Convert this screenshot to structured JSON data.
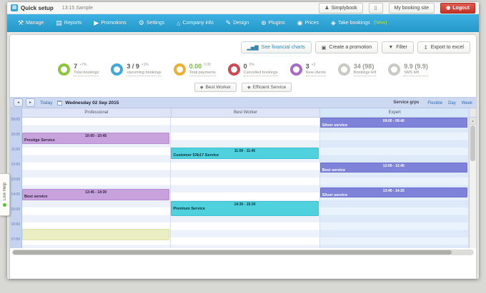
{
  "titlebar": {
    "app_title": "Quick setup",
    "sample_label": "13:15 Sample",
    "account_button": "Simplybook",
    "booking_site_button": "My booking site",
    "logout_button": "Logout"
  },
  "nav": {
    "items": [
      {
        "label": "Manage",
        "icon": "wrench-icon",
        "glyph": "⚒"
      },
      {
        "label": "Reports",
        "icon": "reports-icon",
        "glyph": "▤"
      },
      {
        "label": "Promotions",
        "icon": "arrow-icon",
        "glyph": "▶"
      },
      {
        "label": "Settings",
        "icon": "gear-icon",
        "glyph": "⚙"
      },
      {
        "label": "Company info",
        "icon": "building-icon",
        "glyph": "⌂"
      },
      {
        "label": "Design",
        "icon": "pencil-icon",
        "glyph": "✎"
      },
      {
        "label": "Plugins",
        "icon": "plugin-icon",
        "glyph": "⊕"
      },
      {
        "label": "Prices",
        "icon": "coin-icon",
        "glyph": "◉"
      },
      {
        "label": "Take bookings",
        "icon": "booking-icon",
        "glyph": "◈",
        "badge": "(New)"
      }
    ]
  },
  "toolbar": {
    "buttons": [
      {
        "label": "See financial charts",
        "icon": "chart-icon",
        "glyph": "▂▅▇",
        "accent": true
      },
      {
        "label": "Create a promotion",
        "icon": "promotion-icon",
        "glyph": "▣"
      },
      {
        "label": "Filter",
        "icon": "filter-icon",
        "glyph": "▼"
      },
      {
        "label": "Export to excel",
        "icon": "export-icon",
        "glyph": "↧"
      }
    ]
  },
  "stats": [
    {
      "value": "7",
      "delta": "+7%",
      "label": "Total bookings",
      "color": "#8cc63e"
    },
    {
      "value": "3 / 9",
      "delta": "+1%",
      "label": "Upcoming bookings",
      "color": "#41a8dc"
    },
    {
      "value": "0.00",
      "delta": "0.00",
      "label": "Total payments",
      "color": "#efaf36",
      "value_color": "#7ab648"
    },
    {
      "value": "0",
      "delta": "0%",
      "label": "Cancelled bookings",
      "color": "#cc4b52"
    },
    {
      "value": "3",
      "delta": "+3",
      "label": "New clients",
      "color": "#a86bc9"
    },
    {
      "value": "34 (98)",
      "delta": "",
      "label": "Bookings left",
      "color": "#c9c9c6",
      "muted": true
    },
    {
      "value": "9.9 (9.9)",
      "delta": "",
      "label": "SMS left",
      "color": "#c9c9c6",
      "muted": true
    }
  ],
  "kpi_buttons": [
    {
      "label": "Best Worker",
      "icon": "diamond-icon",
      "glyph": "◆"
    },
    {
      "label": "Efficient Service",
      "icon": "diamond-icon",
      "glyph": "◆"
    }
  ],
  "calendar": {
    "prev_label": "◄",
    "next_label": "►",
    "today_label": "Today",
    "date_label": "Wednesday 02 Sep 2015",
    "group_label": "Service grps",
    "view_links": [
      "Flexible",
      "Day",
      "Week"
    ],
    "columns": [
      "Professional",
      "Best Worker",
      "Expert"
    ],
    "times": [
      "09:00",
      "10:00",
      "11:00",
      "12:00",
      "13:00",
      "14:00",
      "15:00",
      "16:00",
      "17:00"
    ],
    "events": [
      {
        "col": 0,
        "title": "Prestige Service",
        "time": "10:00 - 10:45",
        "start": 10,
        "end": 10.75,
        "type": "purple"
      },
      {
        "col": 0,
        "title": "Best service",
        "time": "13:45 - 14:30",
        "start": 13.75,
        "end": 14.5,
        "type": "purple"
      },
      {
        "col": 0,
        "title": "",
        "time": "",
        "start": 16.4,
        "end": 17.2,
        "type": "yellow"
      },
      {
        "col": 1,
        "title": "Customer 53b17 Service",
        "time": "11:00 - 11:45",
        "start": 11,
        "end": 11.75,
        "type": "cyan"
      },
      {
        "col": 1,
        "title": "Premium Service",
        "time": "14:30 - 15:30",
        "start": 14.55,
        "end": 15.55,
        "type": "cyan"
      },
      {
        "col": 2,
        "title": "Silver service",
        "time": "09:00 - 09:40",
        "start": 9,
        "end": 9.65,
        "type": "indigo"
      },
      {
        "col": 2,
        "title": "Best service",
        "time": "12:00 - 12:40",
        "start": 12,
        "end": 12.65,
        "type": "indigo"
      },
      {
        "col": 2,
        "title": "Silver service",
        "time": "13:40 - 14:20",
        "start": 13.67,
        "end": 14.33,
        "type": "indigo"
      }
    ]
  },
  "live_help": {
    "label": "Live Help"
  }
}
